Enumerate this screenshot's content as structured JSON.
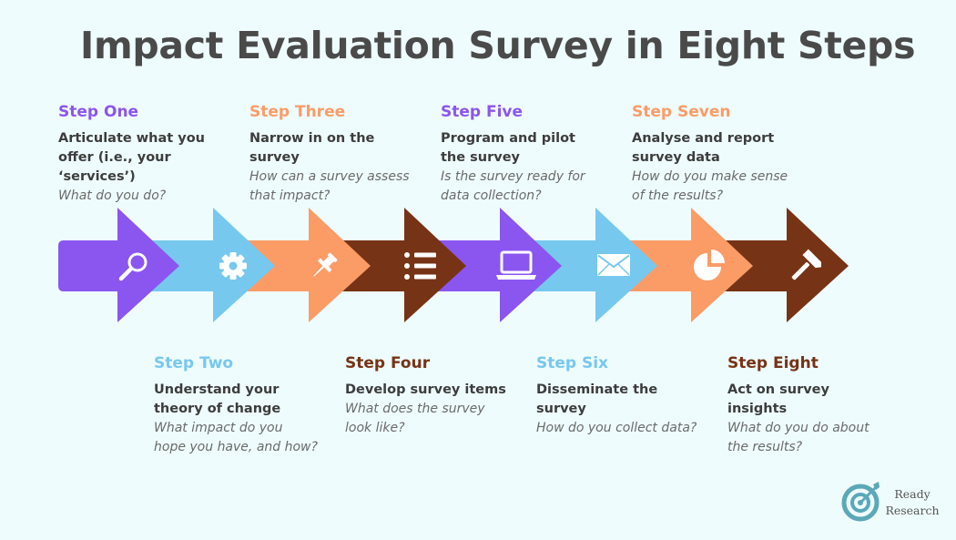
{
  "title": "Impact Evaluation Survey in Eight Steps",
  "colors": {
    "purple": "#8b55f0",
    "blue": "#76c8ef",
    "orange": "#fb9c67",
    "brown": "#773315",
    "title": "#4a4a4a",
    "background": "#effcfd",
    "logo": "#5aa8b8"
  },
  "steps": [
    {
      "label": "Step One",
      "heading": "Articulate what you offer (i.e., your ‘services’)",
      "question": "What do you do?",
      "icon": "magnifier-icon",
      "color": "purple"
    },
    {
      "label": "Step Two",
      "heading": "Understand your theory of change",
      "question": "What impact do you hope you have, and how?",
      "icon": "gear-icon",
      "color": "blue"
    },
    {
      "label": "Step Three",
      "heading": "Narrow in on the survey",
      "question": "How can a survey assess that impact?",
      "icon": "pushpin-icon",
      "color": "orange"
    },
    {
      "label": "Step Four",
      "heading": "Develop survey items",
      "question": "What does the survey look like?",
      "icon": "list-icon",
      "color": "brown"
    },
    {
      "label": "Step Five",
      "heading": "Program and pilot the survey",
      "question": "Is the survey ready for data collection?",
      "icon": "laptop-icon",
      "color": "purple"
    },
    {
      "label": "Step Six",
      "heading": "Disseminate the survey",
      "question": "How do you collect data?",
      "icon": "envelope-icon",
      "color": "blue"
    },
    {
      "label": "Step Seven",
      "heading": "Analyse and report survey data",
      "question": "How do you make sense of the results?",
      "icon": "pie-chart-icon",
      "color": "orange"
    },
    {
      "label": "Step Eight",
      "heading": "Act on survey insights",
      "question": "What do you do about the results?",
      "icon": "hammer-icon",
      "color": "brown"
    }
  ],
  "logo": {
    "line1": "Ready",
    "line2": "Research",
    "icon": "target-arrow-icon"
  }
}
